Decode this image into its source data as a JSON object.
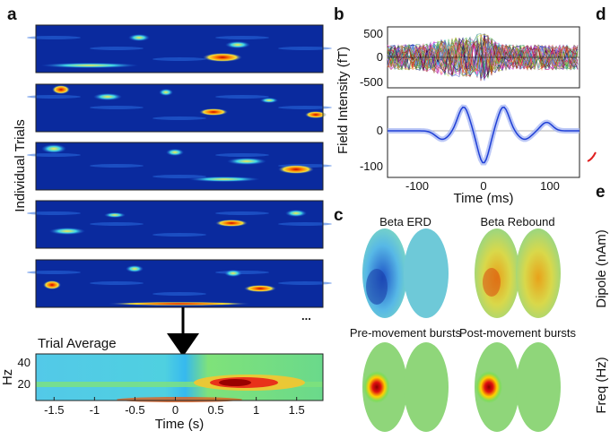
{
  "panels": {
    "a": {
      "label": "a",
      "ylabel": "Individual Trials",
      "ellipsis": "...",
      "avg_title": "Trial Average",
      "avg_ylabel": "Hz",
      "avg_yticks": [
        "40",
        "20"
      ],
      "avg_xlabel": "Time (s)",
      "avg_xticks": [
        "-1.5",
        "-1",
        "-0.5",
        "0",
        "0.5",
        "1",
        "1.5"
      ]
    },
    "b": {
      "label": "b",
      "ylabel": "Field Intensity (fT)",
      "top_yticks": [
        "500",
        "0",
        "-500"
      ],
      "bottom_yticks": [
        "0",
        "-100"
      ],
      "xticks": [
        "-100",
        "0",
        "100"
      ],
      "xlabel": "Time (ms)"
    },
    "c": {
      "label": "c",
      "maps": [
        "Beta ERD",
        "Beta Rebound",
        "Pre-movement bursts",
        "Post-movement bursts"
      ]
    },
    "d": {
      "label": "d"
    },
    "e": {
      "label": "e",
      "ylabel1": "Dipole (nAm)",
      "ylabel2": "Freq (Hz)"
    }
  },
  "colors": {
    "heat_bg": "#0a2a9e",
    "average_line": "#1f3fd6",
    "accent_red": "#e02020"
  }
}
